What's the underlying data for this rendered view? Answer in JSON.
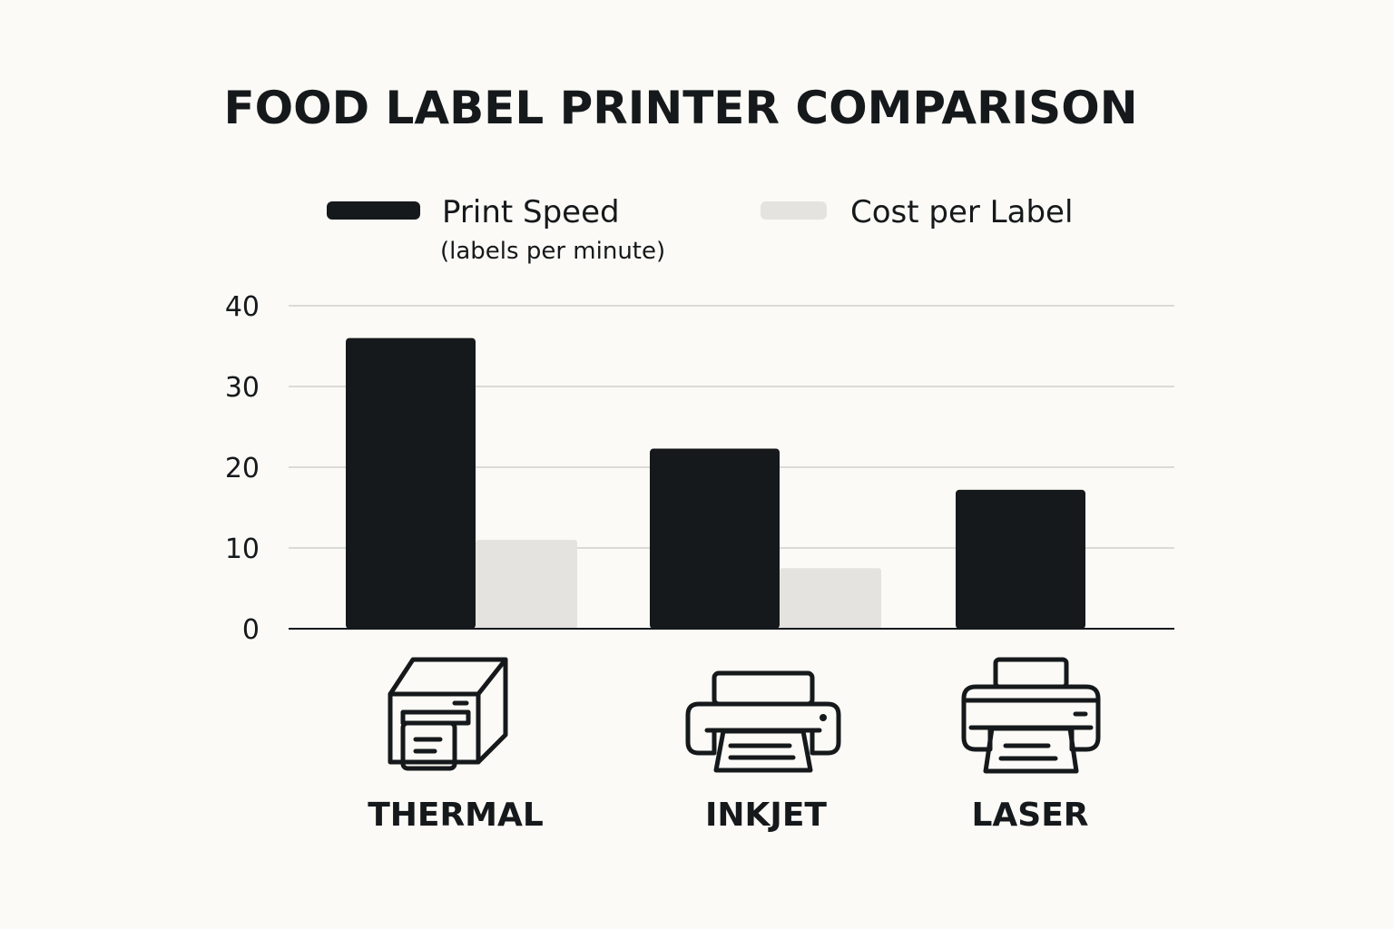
{
  "chart_data": {
    "type": "bar",
    "title": "FOOD LABEL PRINTER COMPARISON",
    "categories": [
      "THERMAL",
      "INKJET",
      "LASER"
    ],
    "series": [
      {
        "name": "Print Speed",
        "subtitle": "(labels per  minute)",
        "color": "#16191b",
        "values": [
          36,
          22.3,
          17.2
        ]
      },
      {
        "name": "Cost per Label",
        "color": "#e4e3df",
        "values": [
          11,
          7.5,
          null
        ]
      }
    ],
    "yticks": [
      "0",
      "10",
      "20",
      "30",
      "40"
    ],
    "ylim": [
      0,
      40
    ],
    "grid": true,
    "legend_position": "top",
    "icons": [
      "thermal-printer-icon",
      "inkjet-printer-icon",
      "laser-printer-icon"
    ]
  }
}
